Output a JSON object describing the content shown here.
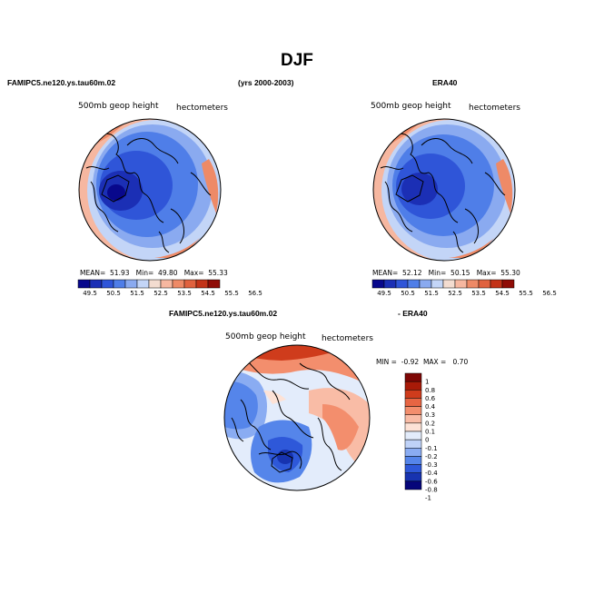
{
  "figure": {
    "season": "DJF",
    "model_label": "FAMIPC5.ne120.ys.tau60m.02",
    "years_label": "(yrs 2000-2003)",
    "obs_label": "ERA40",
    "diff_model_label": "FAMIPC5.ne120.ys.tau60m.02",
    "diff_obs_label": "- ERA40"
  },
  "colors": {
    "sequential": [
      "#08088c",
      "#1b2fb5",
      "#2f55d8",
      "#4f7ee8",
      "#8aaaf0",
      "#c3d5f7",
      "#f3dcd0",
      "#f6b7a0",
      "#ee8a67",
      "#e0623f",
      "#c33318",
      "#8f0c06"
    ],
    "diverging": [
      "#06067a",
      "#1733b0",
      "#2e58d9",
      "#5585ea",
      "#8aacf2",
      "#bfd2f8",
      "#e3ecfb",
      "#fde2d6",
      "#f9bca6",
      "#f38e6d",
      "#e76543",
      "#cf3c1c",
      "#a81a08",
      "#7e0705"
    ]
  },
  "chart_data": [
    {
      "type": "heatmap",
      "projection": "polar-stereographic",
      "title": "FAMIPC5.ne120.ys.tau60m.02",
      "left_label": "500mb  geop  height",
      "right_label": "hectometers",
      "stats": {
        "mean_label": "MEAN=",
        "mean": "51.93",
        "min_label": "Min=",
        "min": "49.80",
        "max_label": "Max=",
        "max": "55.33"
      },
      "colorbar_levels": [
        "49.5",
        "50.5",
        "51.5",
        "52.5",
        "53.5",
        "54.5",
        "55.5",
        "56.5"
      ]
    },
    {
      "type": "heatmap",
      "projection": "polar-stereographic",
      "title": "ERA40",
      "left_label": "500mb  geop  height",
      "right_label": "hectometers",
      "stats": {
        "mean_label": "MEAN=",
        "mean": "52.12",
        "min_label": "Min=",
        "min": "50.15",
        "max_label": "Max=",
        "max": "55.30"
      },
      "colorbar_levels": [
        "49.5",
        "50.5",
        "51.5",
        "52.5",
        "53.5",
        "54.5",
        "55.5",
        "56.5"
      ]
    },
    {
      "type": "heatmap",
      "projection": "polar-stereographic",
      "title": "FAMIPC5.ne120.ys.tau60m.02 - ERA40",
      "left_label": "500mb  geop  height",
      "right_label": "hectometers",
      "stats": {
        "min_label": "MIN =",
        "min": "-0.92",
        "max_label": "MAX =",
        "max": "0.70"
      },
      "colorbar_levels": [
        "1",
        "0.8",
        "0.6",
        "0.4",
        "0.3",
        "0.2",
        "0.1",
        "0",
        "-0.1",
        "-0.2",
        "-0.3",
        "-0.4",
        "-0.6",
        "-0.8",
        "-1"
      ]
    }
  ]
}
